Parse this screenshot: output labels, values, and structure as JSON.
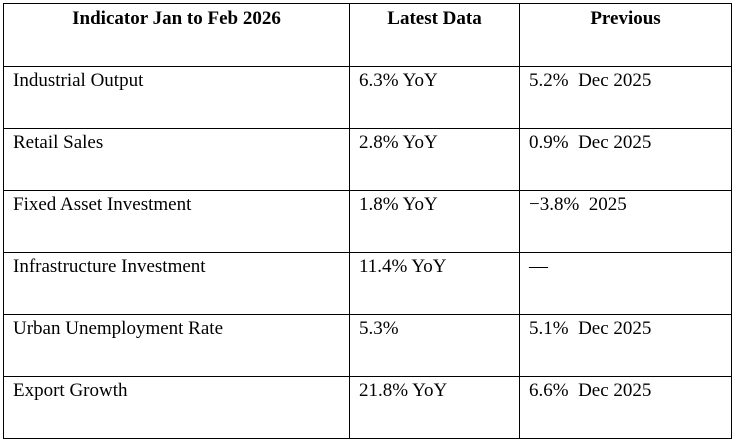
{
  "table": {
    "header": [
      "Indicator Jan to Feb 2026",
      "Latest Data",
      "Previous"
    ],
    "rows": [
      [
        "Industrial Output",
        "6.3% YoY",
        "5.2%  Dec 2025"
      ],
      [
        "Retail Sales",
        "2.8% YoY",
        "0.9%  Dec 2025"
      ],
      [
        "Fixed Asset Investment",
        "1.8% YoY",
        "−3.8%  2025"
      ],
      [
        "Infrastructure Investment",
        "11.4% YoY",
        "—"
      ],
      [
        "Urban Unemployment Rate",
        "5.3%",
        "5.1%  Dec 2025"
      ],
      [
        "Export Growth",
        "21.8% YoY",
        "6.6%  Dec 2025"
      ]
    ]
  }
}
